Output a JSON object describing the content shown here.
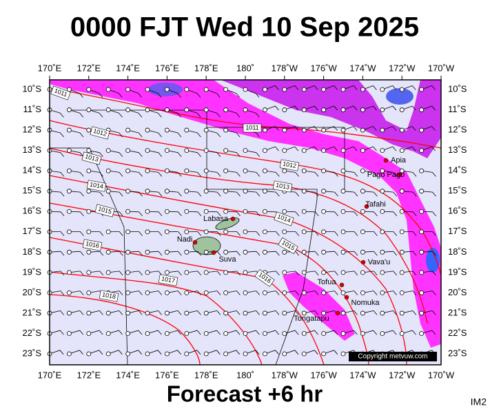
{
  "title": "0000 FJT Wed 10 Sep 2025",
  "subtitle": "Forecast +6 hr",
  "code": "IM2",
  "copyright": "Copyright metvuw.com",
  "x_labels": [
    "170˚E",
    "172˚E",
    "174˚E",
    "176˚E",
    "178˚E",
    "180˚",
    "178˚W",
    "176˚W",
    "174˚W",
    "172˚W",
    "170˚W"
  ],
  "y_labels": [
    "10˚S",
    "11˚S",
    "12˚S",
    "13˚S",
    "14˚S",
    "15˚S",
    "16˚S",
    "17˚S",
    "18˚S",
    "19˚S",
    "20˚S",
    "21˚S",
    "22˚S",
    "23˚S"
  ],
  "places": [
    "Apia",
    "Pago Pago",
    "Tafahi",
    "Labasa",
    "Nadi",
    "Suva",
    "Vava'u",
    "Tofua",
    "Nomuka",
    "Tongatapu"
  ],
  "isobar_labels": [
    "1011",
    "1011",
    "1012",
    "1012",
    "1013",
    "1013",
    "1014",
    "1014",
    "1015",
    "1015",
    "1016",
    "1016",
    "1017",
    "1018"
  ]
}
